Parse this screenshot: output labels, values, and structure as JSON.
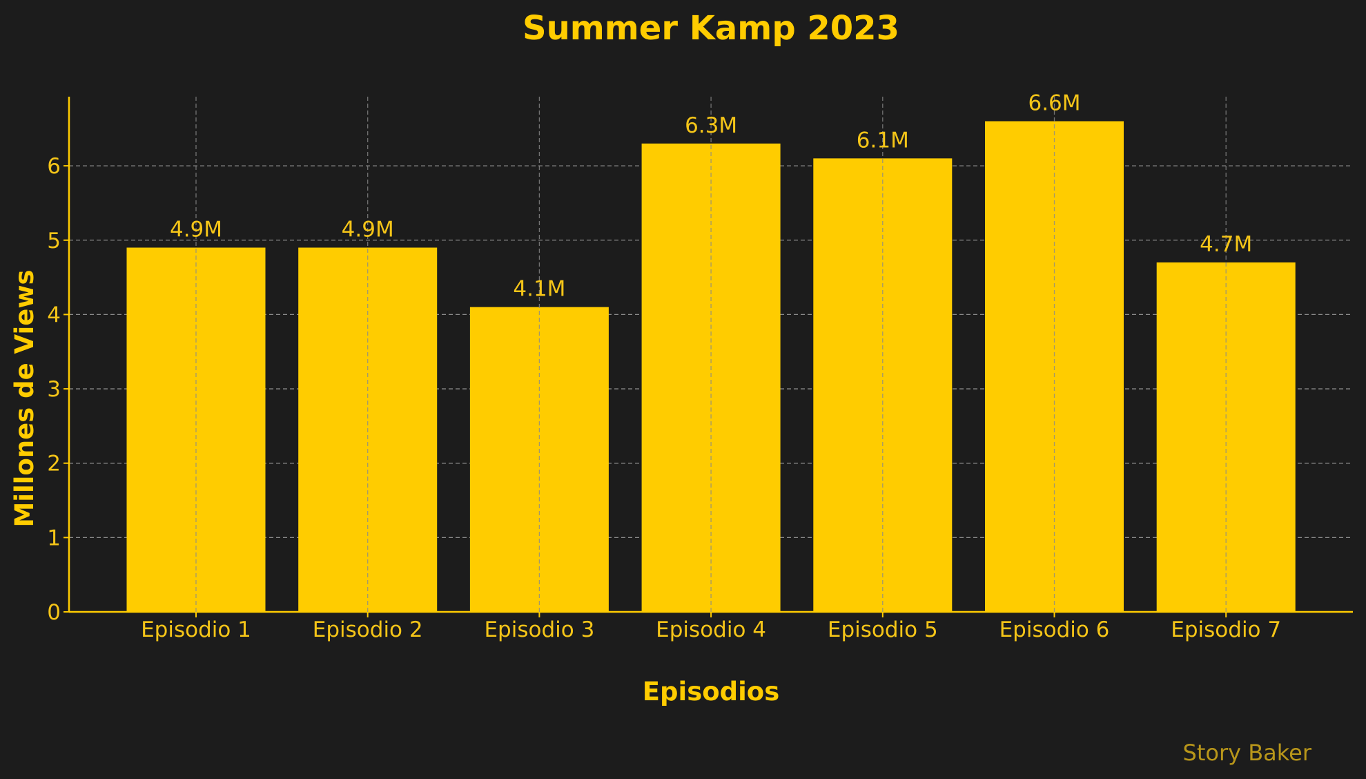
{
  "chart_data": {
    "type": "bar",
    "title": "Summer Kamp 2023",
    "xlabel": "Episodios",
    "ylabel": "Millones de Views",
    "categories": [
      "Episodio 1",
      "Episodio 2",
      "Episodio 3",
      "Episodio 4",
      "Episodio 5",
      "Episodio 6",
      "Episodio 7"
    ],
    "values": [
      4.9,
      4.9,
      4.1,
      6.3,
      6.1,
      6.6,
      4.7
    ],
    "value_labels": [
      "4.9M",
      "4.9M",
      "4.1M",
      "6.3M",
      "6.1M",
      "6.6M",
      "4.7M"
    ],
    "ylim": [
      0,
      6.93
    ],
    "yticks": [
      0,
      1,
      2,
      3,
      4,
      5,
      6
    ],
    "ytick_labels": [
      "0",
      "1",
      "2",
      "3",
      "4",
      "5",
      "6"
    ],
    "grid": true,
    "legend": "none"
  },
  "watermark": "Story Baker",
  "colors": {
    "background": "#1c1c1c",
    "bar": "#ffcc00",
    "text": "#ffcc00",
    "tick_text": "#f5c518",
    "watermark": "#b8961a",
    "grid": "#8a8a8a",
    "axis": "#ffcc00"
  }
}
